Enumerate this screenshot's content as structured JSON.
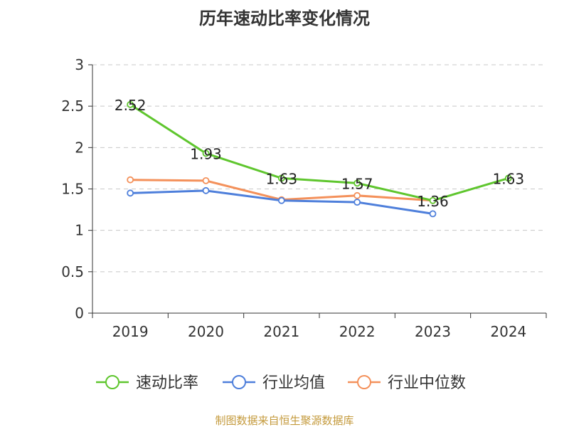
{
  "chart_data": {
    "type": "line",
    "title": "历年速动比率变化情况",
    "categories": [
      "2019",
      "2020",
      "2021",
      "2022",
      "2023",
      "2024"
    ],
    "ylim": [
      0,
      3
    ],
    "yticks": [
      0,
      0.5,
      1,
      1.5,
      2,
      2.5,
      3
    ],
    "ytick_labels": [
      "0",
      "0.5",
      "1",
      "1.5",
      "2",
      "2.5",
      "3"
    ],
    "grid": true,
    "legend_position": "bottom-center",
    "series": [
      {
        "name": "速动比率",
        "color": "#5fc62e",
        "values": [
          2.52,
          1.93,
          1.63,
          1.57,
          1.36,
          1.63
        ],
        "labels": [
          "2.52",
          "1.93",
          "1.63",
          "1.57",
          "1.36",
          "1.63"
        ],
        "show_labels": true
      },
      {
        "name": "行业均值",
        "color": "#4e7fdb",
        "values": [
          1.45,
          1.48,
          1.36,
          1.34,
          1.2,
          null
        ],
        "show_labels": false
      },
      {
        "name": "行业中位数",
        "color": "#f4915b",
        "values": [
          1.61,
          1.6,
          1.37,
          1.42,
          1.36,
          null
        ],
        "show_labels": false
      }
    ],
    "source": "制图数据来自恒生聚源数据库",
    "source_color": "#c49a3c"
  }
}
